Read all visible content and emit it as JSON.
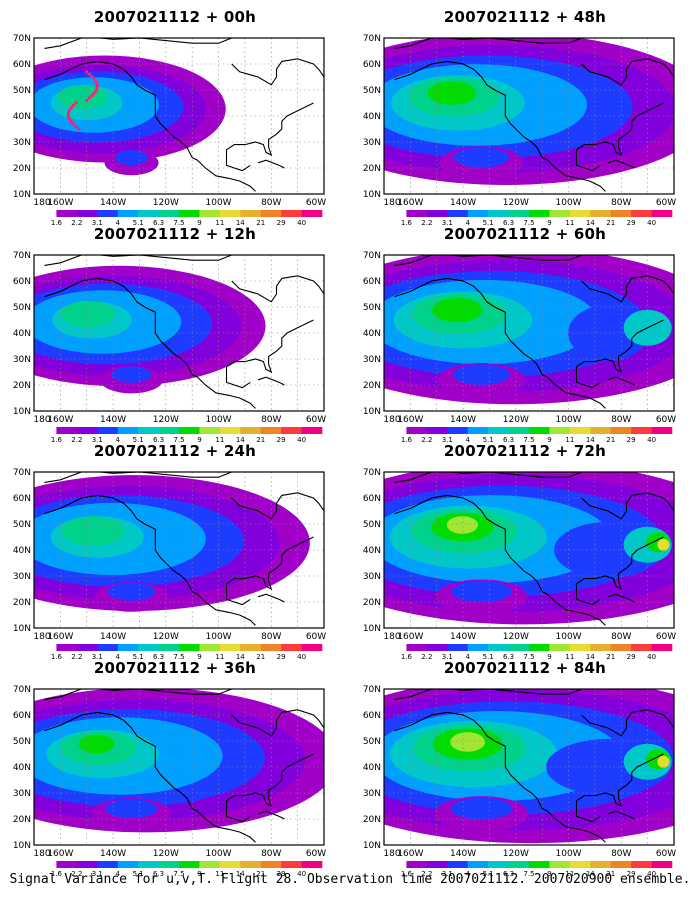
{
  "figure": {
    "caption": "Signal Variance for u,v,T. Flight 28. Observation time 2007021112. 2007020900 ensemble."
  },
  "colorbar": {
    "labels": [
      "1.6",
      "2.2",
      "3.1",
      "4",
      "5.1",
      "6.3",
      "7.5",
      "9",
      "11",
      "14",
      "21",
      "29",
      "40"
    ],
    "colors": [
      "#a000c8",
      "#8200dc",
      "#1e3cff",
      "#00a0ff",
      "#00c8c8",
      "#00d28c",
      "#00dc00",
      "#a0e632",
      "#e6dc32",
      "#e6af2d",
      "#f08228",
      "#fa3c3c",
      "#f00082"
    ]
  },
  "axes": {
    "lon_labels": [
      "180",
      "160W",
      "140W",
      "120W",
      "100W",
      "80W",
      "60W"
    ],
    "lat_labels": [
      "70N",
      "60N",
      "50N",
      "40N",
      "30N",
      "20N",
      "10N"
    ]
  },
  "panels": [
    {
      "id": "00h",
      "title": "2007021112 + 00h",
      "intensity": 0.55,
      "coverage": 0.3,
      "has_track": true
    },
    {
      "id": "12h",
      "title": "2007021112 + 12h",
      "intensity": 0.5,
      "coverage": 0.45,
      "has_track": false
    },
    {
      "id": "24h",
      "title": "2007021112 + 24h",
      "intensity": 0.55,
      "coverage": 0.62,
      "has_track": false
    },
    {
      "id": "36h",
      "title": "2007021112 + 36h",
      "intensity": 0.7,
      "coverage": 0.72,
      "has_track": false
    },
    {
      "id": "48h",
      "title": "2007021112 + 48h",
      "intensity": 0.85,
      "coverage": 0.8,
      "has_track": false
    },
    {
      "id": "60h",
      "title": "2007021112 + 60h",
      "intensity": 0.85,
      "coverage": 0.85,
      "has_track": false
    },
    {
      "id": "72h",
      "title": "2007021112 + 72h",
      "intensity": 0.95,
      "coverage": 0.92,
      "has_track": false
    },
    {
      "id": "84h",
      "title": "2007021112 + 84h",
      "intensity": 1.0,
      "coverage": 0.96,
      "has_track": false
    }
  ]
}
